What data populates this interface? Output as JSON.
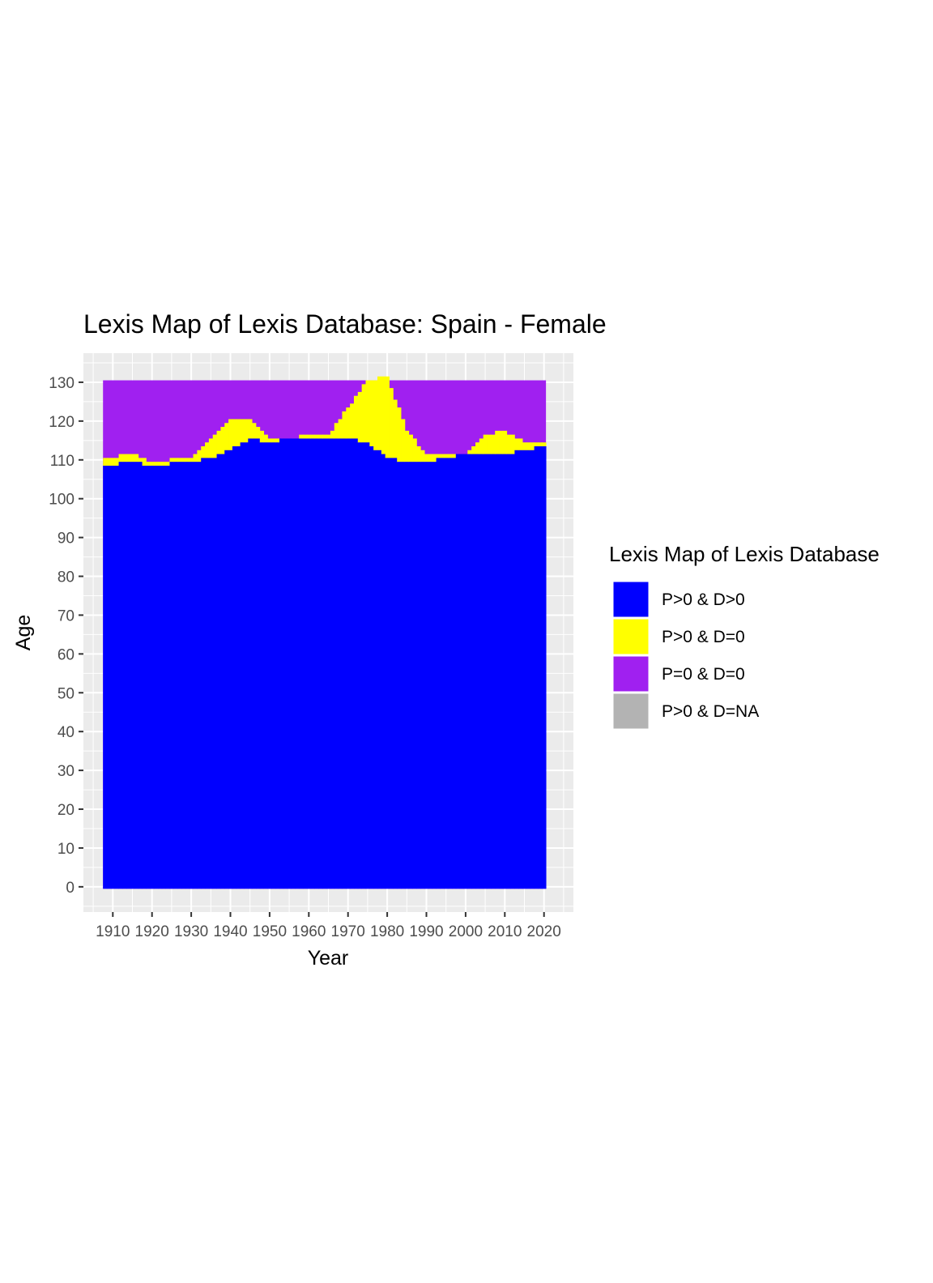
{
  "chart_data": {
    "type": "heatmap",
    "title": "Lexis Map of Lexis Database: Spain - Female",
    "xlabel": "Year",
    "ylabel": "Age",
    "x_ticks": [
      1910,
      1920,
      1930,
      1940,
      1950,
      1960,
      1970,
      1980,
      1990,
      2000,
      2010,
      2020
    ],
    "y_ticks": [
      0,
      10,
      20,
      30,
      40,
      50,
      60,
      70,
      80,
      90,
      100,
      110,
      120,
      130
    ],
    "xlim": [
      1902.5,
      2027.5
    ],
    "ylim": [
      -6.5,
      137.5
    ],
    "data_range": {
      "years": [
        1908,
        2020
      ],
      "ages": [
        0,
        130
      ]
    },
    "grid": true,
    "legend": {
      "title": "Lexis Map of Lexis Database",
      "position": "right",
      "entries": [
        {
          "label": "P>0 & D>0",
          "color": "#0000FF"
        },
        {
          "label": "P>0 & D=0",
          "color": "#FFFF00"
        },
        {
          "label": "P=0 & D=0",
          "color": "#A020F0"
        },
        {
          "label": "P>0 & D=NA",
          "color": "#B3B3B3"
        }
      ]
    },
    "boundary": {
      "description_values": "approximate upper age with P>0 & D>0 by year",
      "years": [
        1908,
        1915,
        1920,
        1930,
        1935,
        1940,
        1945,
        1950,
        1955,
        1960,
        1965,
        1970,
        1975,
        1980,
        1985,
        1990,
        1995,
        2000,
        2005,
        2010,
        2015,
        2020
      ],
      "blue_top": [
        108,
        109,
        108,
        109,
        110,
        112,
        115,
        114,
        115,
        115,
        115,
        115,
        114,
        110,
        109,
        109,
        110,
        111,
        111,
        111,
        112,
        113
      ],
      "yellow_top": [
        110,
        111,
        109,
        110,
        115,
        120,
        120,
        115,
        115,
        116,
        116,
        123,
        130,
        131,
        117,
        111,
        111,
        111,
        116,
        117,
        114,
        114
      ]
    }
  }
}
